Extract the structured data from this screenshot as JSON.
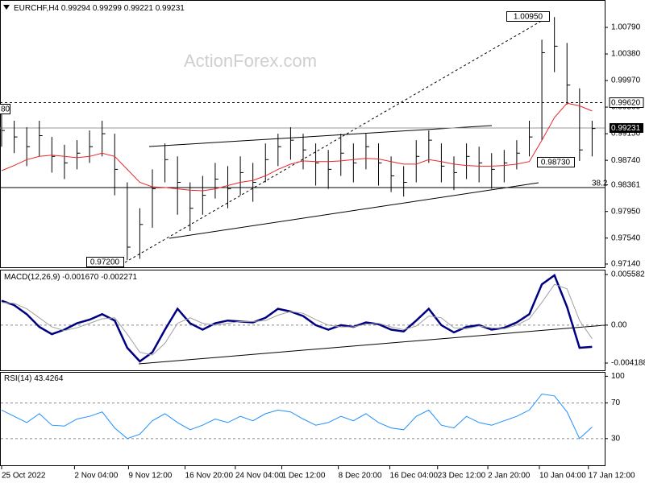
{
  "chart_data": [
    {
      "type": "ohlc",
      "title": "EURCHF,H4",
      "header_values": [
        0.99294,
        0.99299,
        0.99221,
        0.99231
      ],
      "watermark": "ActionForex.com",
      "annotations": [
        "1.00950",
        "0.99620",
        "0.99231",
        "0.98730",
        "0.97200",
        "38.2",
        "80"
      ],
      "x": [
        0,
        1,
        2,
        3,
        4,
        5,
        6,
        7,
        8,
        9,
        10,
        11,
        12,
        13,
        14,
        15,
        16,
        17,
        18,
        19,
        20,
        21,
        22,
        23,
        24,
        25,
        26,
        27,
        28,
        29,
        30,
        31,
        32,
        33,
        34,
        35,
        36,
        37,
        38,
        39,
        40,
        41,
        42,
        43,
        44,
        45,
        46,
        47
      ],
      "high": [
        0.9945,
        0.9935,
        0.9925,
        0.9935,
        0.991,
        0.9898,
        0.9905,
        0.992,
        0.9935,
        0.9915,
        0.984,
        0.98,
        0.986,
        0.99,
        0.988,
        0.984,
        0.985,
        0.987,
        0.9865,
        0.988,
        0.987,
        0.99,
        0.9915,
        0.9925,
        0.9915,
        0.99,
        0.989,
        0.9915,
        0.99,
        0.9915,
        0.99,
        0.988,
        0.9865,
        0.9905,
        0.992,
        0.99,
        0.988,
        0.99,
        0.9895,
        0.9885,
        0.989,
        0.9905,
        0.9935,
        1.006,
        1.0095,
        1.0055,
        0.9985,
        0.9935
      ],
      "low": [
        0.9895,
        0.9885,
        0.9865,
        0.988,
        0.9855,
        0.9845,
        0.986,
        0.987,
        0.988,
        0.982,
        0.972,
        0.9722,
        0.977,
        0.984,
        0.979,
        0.9765,
        0.979,
        0.9815,
        0.98,
        0.982,
        0.981,
        0.984,
        0.9865,
        0.9875,
        0.986,
        0.9835,
        0.983,
        0.985,
        0.984,
        0.986,
        0.9835,
        0.9825,
        0.9818,
        0.984,
        0.987,
        0.984,
        0.9828,
        0.9845,
        0.984,
        0.983,
        0.984,
        0.986,
        0.988,
        0.9905,
        1.001,
        0.996,
        0.9873,
        0.988
      ],
      "close": [
        0.992,
        0.991,
        0.9895,
        0.9912,
        0.988,
        0.987,
        0.9885,
        0.9895,
        0.9915,
        0.986,
        0.974,
        0.9775,
        0.983,
        0.9875,
        0.984,
        0.98,
        0.982,
        0.9845,
        0.983,
        0.9855,
        0.984,
        0.9875,
        0.9895,
        0.9905,
        0.989,
        0.987,
        0.986,
        0.9885,
        0.987,
        0.9895,
        0.987,
        0.985,
        0.984,
        0.988,
        0.9905,
        0.9865,
        0.9855,
        0.988,
        0.987,
        0.986,
        0.987,
        0.9885,
        0.991,
        1.004,
        1.005,
        0.999,
        0.989,
        0.9923
      ],
      "bar_color": "#000000",
      "ma": {
        "color": "#e8262b",
        "values": [
          0.9858,
          0.9866,
          0.9875,
          0.988,
          0.9882,
          0.988,
          0.9878,
          0.988,
          0.9885,
          0.988,
          0.986,
          0.984,
          0.9833,
          0.9832,
          0.983,
          0.9828,
          0.9827,
          0.983,
          0.9835,
          0.984,
          0.9843,
          0.985,
          0.986,
          0.9868,
          0.9873,
          0.9872,
          0.9872,
          0.9873,
          0.9875,
          0.9877,
          0.9876,
          0.9872,
          0.9868,
          0.9868,
          0.9875,
          0.9872,
          0.9868,
          0.9866,
          0.9865,
          0.9865,
          0.9866,
          0.9868,
          0.9872,
          0.9905,
          0.994,
          0.9962,
          0.9958,
          0.995
        ]
      },
      "xlim": [
        0,
        48
      ],
      "ylim": [
        0.9709,
        1.012
      ],
      "yticks": [
        {
          "value": 1.0079,
          "label": "1.00790"
        },
        {
          "value": 1.0038,
          "label": "1.00380"
        },
        {
          "value": 0.9997,
          "label": "0.99970"
        },
        {
          "value": 0.9956,
          "label": "0.99560"
        },
        {
          "value": 0.9915,
          "label": "0.99150"
        },
        {
          "value": 0.9874,
          "label": "0.98740"
        },
        0.98361,
        {
          "value": 0.9795,
          "label": "0.97950"
        },
        {
          "value": 0.9754,
          "label": "0.97540"
        },
        {
          "value": 0.9714,
          "label": "0.97140"
        }
      ],
      "xticks": [
        {
          "value": 0,
          "label": "25 Oct 2022"
        },
        {
          "value": 5.8,
          "label": "2 Nov 04:00"
        },
        {
          "value": 10.1,
          "label": "9 Nov 12:00"
        },
        {
          "value": 14.6,
          "label": "16 Nov 20:00"
        },
        {
          "value": 18.6,
          "label": "24 Nov 04:00"
        },
        {
          "value": 22.3,
          "label": "1 Dec 12:00"
        },
        {
          "value": 26.8,
          "label": "8 Dec 20:00"
        },
        {
          "value": 30.9,
          "label": "16 Dec 04:00"
        },
        {
          "value": 34.7,
          "label": "23 Dec 12:00"
        },
        {
          "value": 38.7,
          "label": "2 Jan 20:00"
        },
        {
          "value": 42.8,
          "label": "10 Jan 04:00"
        },
        {
          "value": 46.7,
          "label": "17 Jan 12:00"
        }
      ]
    },
    {
      "type": "line",
      "title": "MACD(12,26,9)",
      "header_values": [
        {
          "value": -0.00167,
          "label": "-0.001670"
        },
        -0.002271
      ],
      "series": [
        {
          "color": "#000080",
          "values": [
            0.0027,
            0.0022,
            0.0012,
            -0.0002,
            -0.001,
            -0.0005,
            0.0002,
            0.0006,
            0.0012,
            0.0005,
            -0.0025,
            -0.004,
            -0.003,
            -0.0005,
            0.0018,
            0.0002,
            -0.0005,
            0.0002,
            0.0005,
            0.0004,
            0.0003,
            0.0008,
            0.0018,
            0.0015,
            0.001,
            0.0,
            -0.0005,
            0.0,
            -0.0002,
            0.0003,
            0.0001,
            -0.0005,
            -0.0007,
            0.0005,
            0.0018,
            0.0,
            -0.0008,
            -0.0002,
            0.0,
            -0.0005,
            -0.0003,
            0.0003,
            0.0012,
            0.0045,
            0.0055,
            0.002,
            -0.0025,
            -0.0024
          ]
        },
        {
          "color": "#a0a0a0",
          "values": [
            0.0025,
            0.0024,
            0.0018,
            0.0008,
            -0.0002,
            -0.0006,
            -0.0003,
            0.0002,
            0.0007,
            0.0008,
            -0.001,
            -0.003,
            -0.0033,
            -0.002,
            0.0002,
            0.0008,
            0.0002,
            0.0,
            0.0002,
            0.0004,
            0.0004,
            0.0005,
            0.0011,
            0.0015,
            0.0013,
            0.0006,
            0.0,
            -0.0002,
            -0.0002,
            0.0001,
            0.0002,
            -0.0002,
            -0.0005,
            -0.0001,
            0.001,
            0.0008,
            -0.0003,
            -0.0004,
            -0.0001,
            -0.0003,
            -0.0004,
            0.0,
            0.0007,
            0.0025,
            0.0045,
            0.004,
            0.0005,
            -0.0015
          ]
        }
      ],
      "ylim": [
        -0.00499,
        0.00603
      ],
      "yticks": [
        0.005582,
        {
          "value": 0,
          "label": "0.00"
        },
        -0.004188
      ],
      "grid_ticks": [
        0
      ]
    },
    {
      "type": "line",
      "title": "RSI(14)",
      "header_values": [
        43.4264
      ],
      "series": [
        {
          "color": "#1e90ff",
          "values": [
            62,
            55,
            48,
            58,
            45,
            44,
            52,
            55,
            60,
            42,
            30,
            35,
            50,
            58,
            48,
            40,
            45,
            52,
            48,
            55,
            50,
            58,
            62,
            60,
            52,
            45,
            48,
            55,
            50,
            58,
            48,
            42,
            40,
            55,
            62,
            45,
            42,
            55,
            48,
            45,
            50,
            55,
            62,
            80,
            78,
            60,
            30,
            43
          ]
        }
      ],
      "ylim": [
        0,
        104
      ],
      "yticks": [
        100,
        70,
        30
      ],
      "grid_ticks": [
        70,
        30
      ]
    }
  ]
}
